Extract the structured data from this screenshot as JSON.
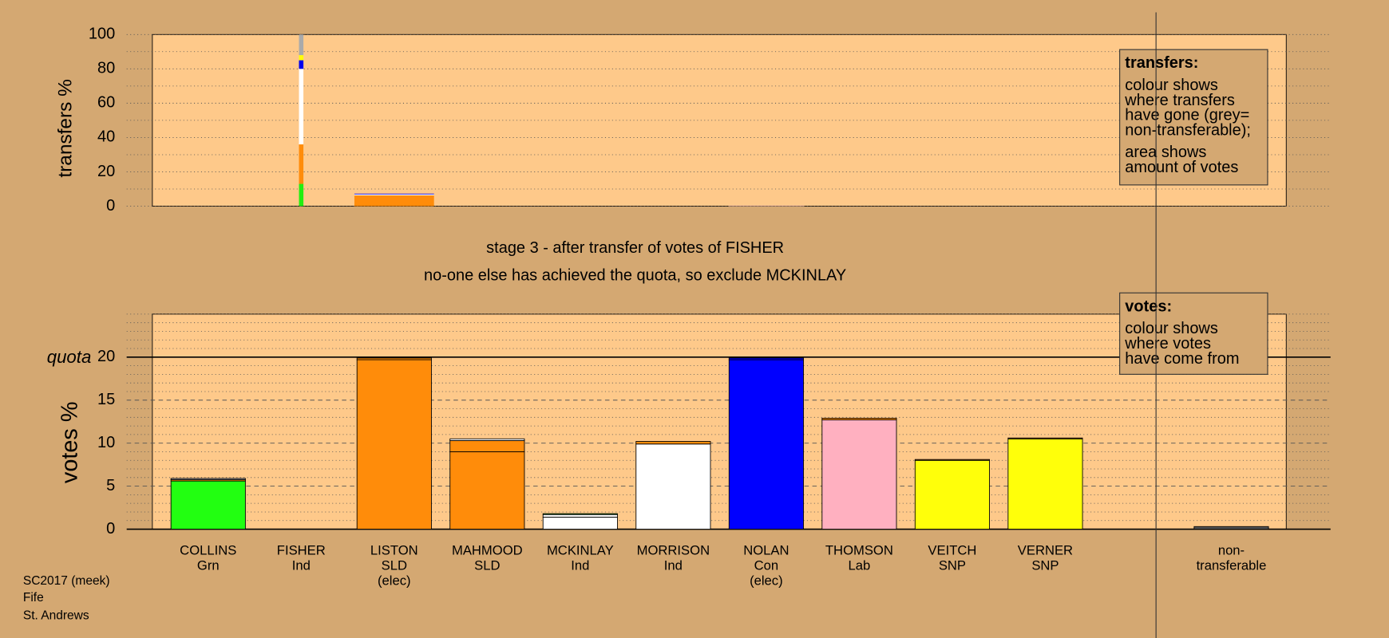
{
  "chart_data": [
    {
      "type": "bar",
      "y_label": "transfers %",
      "ylim": [
        0,
        100
      ],
      "yticks": [
        0,
        20,
        40,
        60,
        80,
        100
      ],
      "minor_yticks": [
        10,
        30,
        50,
        70,
        90
      ],
      "legend": {
        "heading": "transfers:",
        "lines": [
          "colour shows",
          "where transfers",
          "have gone (grey=",
          "non-transferable);"
        ],
        "lines2": [
          "area shows",
          "amount of votes"
        ]
      },
      "bars": [
        null,
        {
          "width": 0.06,
          "segments": [
            {
              "color": "#22ee11",
              "value": 13
            },
            {
              "color": "#ff8c0a",
              "value": 23
            },
            {
              "color": "#ffffff",
              "value": 44
            },
            {
              "color": "#0000ee",
              "value": 5
            },
            {
              "color": "#ffff0a",
              "value": 3
            },
            {
              "color": "#aaaaaa",
              "value": 12
            }
          ]
        },
        {
          "width": 1.07,
          "segments": [
            {
              "color": "#ff8c0a",
              "value": 6.3
            },
            {
              "color": "#ffffff",
              "value": 0.6
            },
            {
              "color": "#0000ee",
              "value": 0.4
            }
          ]
        },
        null,
        null,
        null,
        {
          "width": 1.02,
          "segments": [
            {
              "color": "#f4b8a0",
              "value": 0.4
            }
          ]
        },
        null,
        null,
        null,
        null
      ]
    },
    {
      "type": "bar",
      "y_label": "votes %",
      "title": "stage 3 - after transfer of votes of FISHER",
      "subtitle": "no-one else has achieved the quota, so exclude MCKINLAY",
      "ylim": [
        0,
        25
      ],
      "yticks": [
        0,
        5,
        10,
        15,
        20
      ],
      "minor_yticks": [
        1,
        2,
        3,
        4,
        6,
        7,
        8,
        9,
        11,
        12,
        13,
        14,
        16,
        17,
        18,
        19,
        21,
        22,
        23,
        24,
        25
      ],
      "quota": {
        "label": "quota",
        "value": 20
      },
      "legend": {
        "heading": "votes:",
        "lines": [
          "colour shows",
          "where votes",
          "have come from"
        ]
      },
      "categories": [
        "COLLINS",
        "FISHER",
        "LISTON",
        "MAHMOOD",
        "MCKINLAY",
        "MORRISON",
        "NOLAN",
        "THOMSON",
        "VEITCH",
        "VERNER",
        "non-"
      ],
      "parties": [
        "Grn",
        "Ind",
        "SLD",
        "SLD",
        "Ind",
        "Ind",
        "Con",
        "Lab",
        "SNP",
        "SNP",
        "transferable"
      ],
      "notes": [
        null,
        null,
        "(elec)",
        null,
        null,
        null,
        "(elec)",
        null,
        null,
        null,
        null
      ],
      "bars": [
        {
          "segments": [
            {
              "color": "#22ff11",
              "value": 5.6
            },
            {
              "color": "#ff8c0a",
              "value": 0.15
            },
            {
              "color": "#aaaaaa",
              "value": 0.15
            }
          ]
        },
        {
          "segments": []
        },
        {
          "segments": [
            {
              "color": "#ff8c0a",
              "value": 19.7
            },
            {
              "color": "#ff8c0a",
              "value": 0.2
            }
          ]
        },
        {
          "segments": [
            {
              "color": "#ff8c0a",
              "value": 9.0
            },
            {
              "color": "#ff8c0a",
              "value": 1.3
            },
            {
              "color": "#ffffff",
              "value": 0.2
            }
          ]
        },
        {
          "segments": [
            {
              "color": "#ffffff",
              "value": 1.4
            },
            {
              "color": "#ffffff",
              "value": 0.3
            },
            {
              "color": "#22ff11",
              "value": 0.1
            }
          ]
        },
        {
          "segments": [
            {
              "color": "#ffffff",
              "value": 9.9
            },
            {
              "color": "#ff8c0a",
              "value": 0.3
            }
          ]
        },
        {
          "segments": [
            {
              "color": "#0000ff",
              "value": 19.7
            },
            {
              "color": "#0000ff",
              "value": 0.2
            }
          ]
        },
        {
          "segments": [
            {
              "color": "#ffb0c0",
              "value": 12.7
            },
            {
              "color": "#ff8c0a",
              "value": 0.2
            }
          ]
        },
        {
          "segments": [
            {
              "color": "#ffff0a",
              "value": 8.0
            },
            {
              "color": "#ff8c0a",
              "value": 0.1
            }
          ]
        },
        {
          "segments": [
            {
              "color": "#ffff0a",
              "value": 10.5
            },
            {
              "color": "#ff8c0a",
              "value": 0.1
            }
          ]
        },
        {
          "segments": [
            {
              "color": "#555555",
              "value": 0.3
            }
          ]
        }
      ]
    }
  ],
  "footer": [
    "SC2017 (meek)",
    "Fife",
    "St. Andrews"
  ]
}
